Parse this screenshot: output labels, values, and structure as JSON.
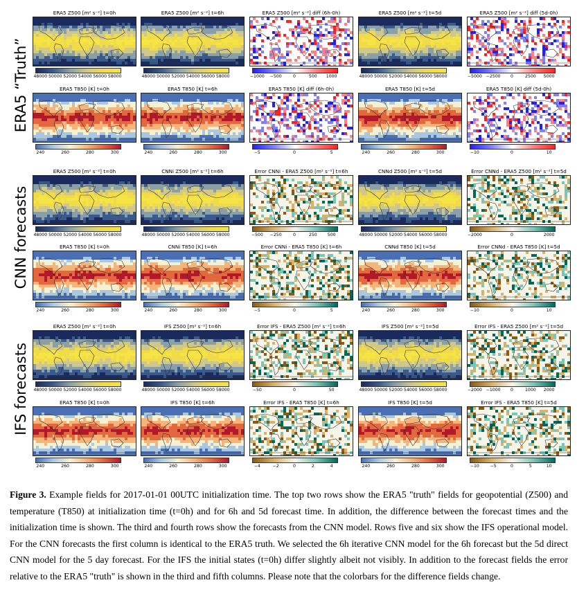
{
  "row_labels": [
    "ERA5 “Truth”",
    "CNN forecasts",
    "IFS forecasts"
  ],
  "colors": {
    "z500": [
      "#1a2a5c",
      "#3b5a8c",
      "#8aa0a8",
      "#cfc88a",
      "#f0dc4a",
      "#f6e445"
    ],
    "t850": [
      "#4a6fb4",
      "#a9c8e0",
      "#f7f1d4",
      "#f4b47a",
      "#e3683e",
      "#b2182b"
    ],
    "diff_bwr": [
      "#2020ff",
      "#8080ff",
      "#ffffff",
      "#ff8080",
      "#ff2020"
    ],
    "err_brbg": [
      "#8c5a10",
      "#d8b26a",
      "#f7f4ea",
      "#7cc6b8",
      "#00695a"
    ]
  },
  "panels": [
    {
      "title": "ERA5 Z500 [m² s⁻²] t=0h",
      "cmap": "z500",
      "ticks": [
        "48000",
        "50000",
        "52000",
        "54000",
        "56000",
        "58000"
      ]
    },
    {
      "title": "ERA5 Z500 [m² s⁻²] t=6h",
      "cmap": "z500",
      "ticks": [
        "48000",
        "50000",
        "52000",
        "54000",
        "56000",
        "58000"
      ]
    },
    {
      "title": "ERA5 Z500 [m² s⁻²] diff (6h-0h)",
      "cmap": "diff_bwr",
      "ticks": [
        "−1000",
        "−500",
        "0",
        "500",
        "1000"
      ]
    },
    {
      "title": "ERA5 Z500 [m² s⁻²] t=5d",
      "cmap": "z500",
      "ticks": [
        "48000",
        "50000",
        "52000",
        "54000",
        "56000",
        "58000"
      ]
    },
    {
      "title": "ERA5 Z500 [m² s⁻²] diff (5d-0h)",
      "cmap": "diff_bwr",
      "ticks": [
        "−5000",
        "−2500",
        "0",
        "2500",
        "5000"
      ]
    },
    {
      "title": "ERA5 T850 [K] t=0h",
      "cmap": "t850",
      "ticks": [
        "240",
        "260",
        "280",
        "300"
      ]
    },
    {
      "title": "ERA5 T850 [K] t=6h",
      "cmap": "t850",
      "ticks": [
        "240",
        "260",
        "280",
        "300"
      ]
    },
    {
      "title": "ERA5 T850 [K] diff (6h-0h)",
      "cmap": "diff_bwr",
      "ticks": [
        "−5",
        "0",
        "5"
      ]
    },
    {
      "title": "ERA5 T850 [K] t=5d",
      "cmap": "t850",
      "ticks": [
        "240",
        "260",
        "280",
        "300"
      ]
    },
    {
      "title": "ERA5 T850 [K] diff (5d-0h)",
      "cmap": "diff_bwr",
      "ticks": [
        "−10",
        "0",
        "10"
      ]
    },
    {
      "title": "ERA5 Z500 [m² s⁻²] t=0h",
      "cmap": "z500",
      "ticks": [
        "48000",
        "50000",
        "52000",
        "54000",
        "56000",
        "58000"
      ]
    },
    {
      "title": "CNNi Z500 [m² s⁻²] t=6h",
      "cmap": "z500",
      "ticks": [
        "48000",
        "50000",
        "52000",
        "54000",
        "56000",
        "58000"
      ]
    },
    {
      "title": "Error CNNi - ERA5 Z500 [m² s⁻²] t=6h",
      "cmap": "err_brbg",
      "ticks": [
        "−500",
        "−250",
        "0",
        "250",
        "500"
      ]
    },
    {
      "title": "CNNd Z500 [m² s⁻²] t=5d",
      "cmap": "z500",
      "ticks": [
        "48000",
        "50000",
        "52000",
        "54000",
        "56000",
        "58000"
      ]
    },
    {
      "title": "Error CNNd - ERA5 Z500 [m² s⁻²] t=5d",
      "cmap": "err_brbg",
      "ticks": [
        "−2000",
        "0",
        "2000"
      ]
    },
    {
      "title": "ERA5 T850 [K] t=0h",
      "cmap": "t850",
      "ticks": [
        "240",
        "260",
        "280",
        "300"
      ]
    },
    {
      "title": "CNNi T850 [K] t=6h",
      "cmap": "t850",
      "ticks": [
        "240",
        "260",
        "280",
        "300"
      ]
    },
    {
      "title": "Error CNNi - ERA5 T850 [K] t=6h",
      "cmap": "err_brbg",
      "ticks": [
        "−5",
        "0",
        "5"
      ]
    },
    {
      "title": "CNNd T850 [K] t=5d",
      "cmap": "t850",
      "ticks": [
        "240",
        "260",
        "280",
        "300"
      ]
    },
    {
      "title": "Error CNNd - ERA5 T850 [K] t=5d",
      "cmap": "err_brbg",
      "ticks": [
        "−10",
        "0",
        "10"
      ]
    },
    {
      "title": "ERA5 Z500 [m² s⁻²] t=0h",
      "cmap": "z500",
      "ticks": [
        "48000",
        "50000",
        "52000",
        "54000",
        "56000",
        "58000"
      ]
    },
    {
      "title": "IFS Z500 [m² s⁻²] t=6h",
      "cmap": "z500",
      "ticks": [
        "48000",
        "50000",
        "52000",
        "54000",
        "56000",
        "58000"
      ]
    },
    {
      "title": "Error IFS - ERA5 Z500 [m² s⁻²] t=6h",
      "cmap": "err_brbg",
      "ticks": [
        "−50",
        "0",
        "50"
      ]
    },
    {
      "title": "IFS Z500 [m² s⁻²] t=5d",
      "cmap": "z500",
      "ticks": [
        "48000",
        "50000",
        "52000",
        "54000",
        "56000",
        "58000"
      ]
    },
    {
      "title": "Error IFS - ERA5 Z500 [m² s⁻²] t=5d",
      "cmap": "err_brbg",
      "ticks": [
        "−2000",
        "−1000",
        "0",
        "1000",
        "2000"
      ]
    },
    {
      "title": "ERA5 T850 [K] t=0h",
      "cmap": "t850",
      "ticks": [
        "240",
        "260",
        "280",
        "300"
      ]
    },
    {
      "title": "IFS T850 [K] t=6h",
      "cmap": "t850",
      "ticks": [
        "240",
        "260",
        "280",
        "300"
      ]
    },
    {
      "title": "Error IFS - ERA5 T850 [K] t=6h",
      "cmap": "err_brbg",
      "ticks": [
        "−4",
        "−2",
        "0",
        "2",
        "4"
      ]
    },
    {
      "title": "IFS T850 [K] t=5d",
      "cmap": "t850",
      "ticks": [
        "240",
        "260",
        "280",
        "300"
      ]
    },
    {
      "title": "Error IFS - ERA5 T850 [K] t=5d",
      "cmap": "err_brbg",
      "ticks": [
        "−10",
        "−5",
        "0",
        "5",
        "10"
      ]
    }
  ],
  "caption": {
    "label": "Figure 3.",
    "text": "Example fields for 2017-01-01 00UTC initialization time. The top two rows show the ERA5 \"truth\" fields for geopotential (Z500) and temperature (T850) at initialization time (t=0h) and for 6h and 5d forecast time. In addition, the difference between the forecast times and the initialization time is shown. The third and fourth rows show the forecasts from the CNN model. Rows five and six show the IFS operational model. For the CNN forecasts the first column is identical to the ERA5 truth. We selected the 6h iterative CNN model for the 6h forecast but the 5d direct CNN model for the 5 day forecast. For the IFS the initial states (t=0h) differ slightly albeit not visibly. In addition to the forecast fields the error relative to the ERA5 \"truth\" is shown in the third and fifth columns. Please note that the colorbars for the difference fields change."
  }
}
